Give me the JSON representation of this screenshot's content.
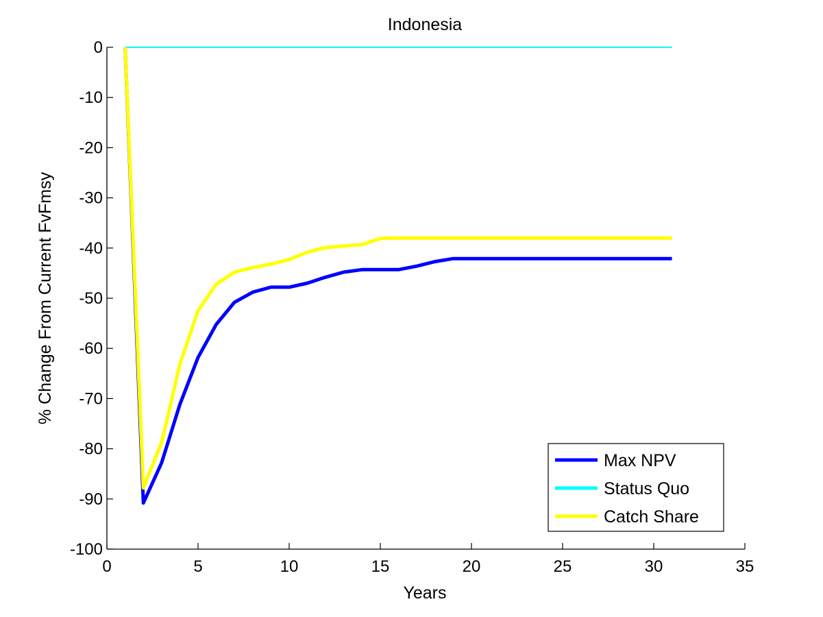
{
  "chart_data": {
    "type": "line",
    "title": "Indonesia",
    "xlabel": "Years",
    "ylabel": "% Change From Current FvFmsy",
    "xlim": [
      0,
      35
    ],
    "ylim": [
      -100,
      0
    ],
    "xticks": [
      0,
      5,
      10,
      15,
      20,
      25,
      30,
      35
    ],
    "yticks": [
      0,
      -10,
      -20,
      -30,
      -40,
      -50,
      -60,
      -70,
      -80,
      -90,
      -100
    ],
    "xtick_labels": [
      "0",
      "5",
      "10",
      "15",
      "20",
      "25",
      "30",
      "35"
    ],
    "ytick_labels": [
      "0",
      "-10",
      "-20",
      "-30",
      "-40",
      "-50",
      "-60",
      "-70",
      "-80",
      "-90",
      "-100"
    ],
    "grid": false,
    "legend_position": "bottom-right",
    "series": [
      {
        "name": "Max NPV",
        "color": "#0000ff",
        "x": [
          1,
          2,
          3,
          4,
          5,
          6,
          7,
          8,
          9,
          10,
          11,
          12,
          13,
          14,
          15,
          16,
          17,
          18,
          19,
          20,
          21,
          22,
          23,
          24,
          25,
          26,
          27,
          28,
          29,
          30,
          31
        ],
        "y": [
          0,
          -90.8,
          -82.8,
          -71.2,
          -61.8,
          -55.2,
          -50.8,
          -48.8,
          -47.8,
          -47.8,
          -47.0,
          -45.8,
          -44.8,
          -44.3,
          -44.3,
          -44.3,
          -43.6,
          -42.7,
          -42.1,
          -42.1,
          -42.1,
          -42.1,
          -42.1,
          -42.1,
          -42.1,
          -42.1,
          -42.1,
          -42.1,
          -42.1,
          -42.1,
          -42.1
        ]
      },
      {
        "name": "Status Quo",
        "color": "#00ffff",
        "x": [
          1,
          31
        ],
        "y": [
          0,
          0
        ]
      },
      {
        "name": "Catch Share",
        "color": "#ffff00",
        "x": [
          1,
          2,
          3,
          4,
          5,
          6,
          7,
          8,
          9,
          10,
          11,
          12,
          13,
          14,
          15,
          16,
          17,
          18,
          19,
          20,
          21,
          22,
          23,
          24,
          25,
          26,
          27,
          28,
          29,
          30,
          31
        ],
        "y": [
          0,
          -87.8,
          -78.8,
          -63.2,
          -52.5,
          -47.2,
          -44.8,
          -43.9,
          -43.2,
          -42.3,
          -40.8,
          -39.9,
          -39.6,
          -39.3,
          -38.1,
          -38.0,
          -38.0,
          -38.0,
          -38.0,
          -38.0,
          -38.0,
          -38.0,
          -38.0,
          -38.0,
          -38.0,
          -38.0,
          -38.0,
          -38.0,
          -38.0,
          -38.0,
          -38.0
        ]
      }
    ]
  }
}
